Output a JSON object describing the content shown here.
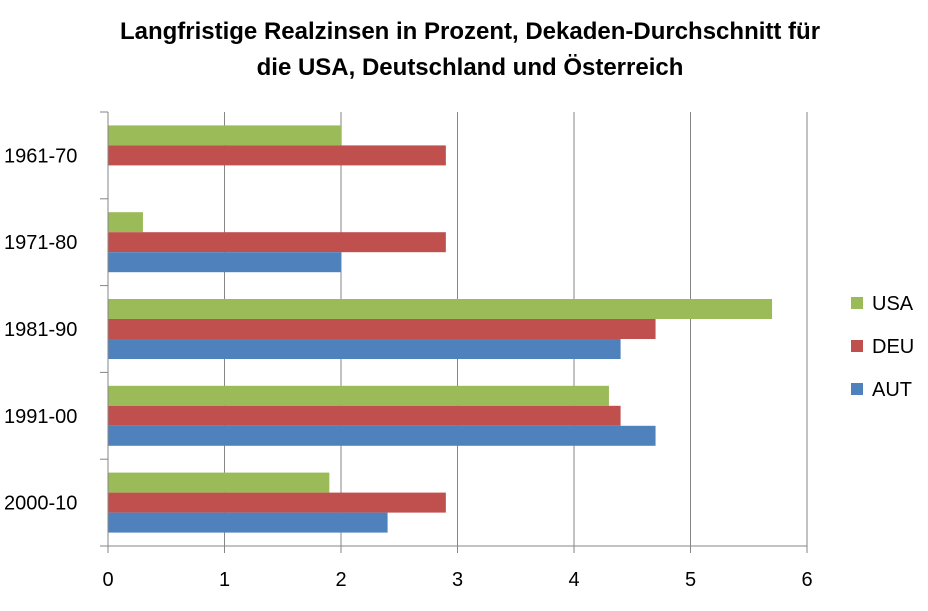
{
  "chart_data": {
    "type": "bar",
    "orientation": "horizontal",
    "title_lines": [
      "Langfristige Realzinsen in Prozent, Dekaden-Durchschnitt für",
      "die USA, Deutschland und Österreich"
    ],
    "categories": [
      "1961-70",
      "1971-80",
      "1981-90",
      "1991-00",
      "2000-10"
    ],
    "series": [
      {
        "name": "USA",
        "color": "#9BBB59",
        "values": [
          2.0,
          0.3,
          5.7,
          4.3,
          1.9
        ]
      },
      {
        "name": "DEU",
        "color": "#C0504D",
        "values": [
          2.9,
          2.9,
          4.7,
          4.4,
          2.9
        ]
      },
      {
        "name": "AUT",
        "color": "#4F81BD",
        "values": [
          null,
          2.0,
          4.4,
          4.7,
          2.4
        ]
      }
    ],
    "xlim": [
      0,
      6
    ],
    "x_ticks": [
      "0",
      "1",
      "2",
      "3",
      "4",
      "5",
      "6"
    ],
    "grid": true,
    "legend_position": "right"
  }
}
